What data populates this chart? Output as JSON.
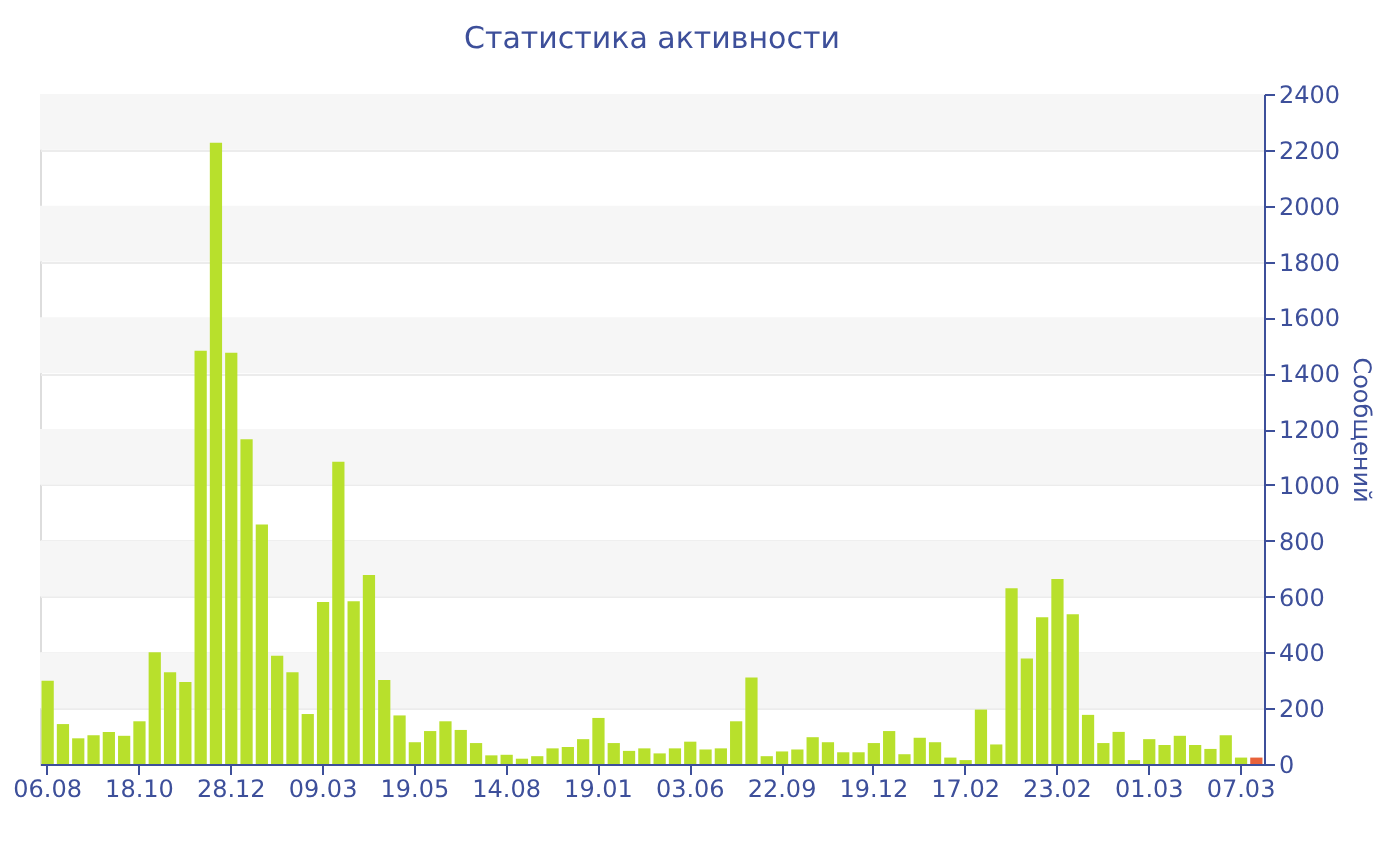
{
  "chart_data": {
    "type": "bar",
    "title": "Статистика активности",
    "ylabel": "Сообщений",
    "categories": [
      "06.08",
      null,
      null,
      null,
      null,
      null,
      "18.10",
      null,
      null,
      null,
      null,
      null,
      "28.12",
      null,
      null,
      null,
      null,
      null,
      "09.03",
      null,
      null,
      null,
      null,
      null,
      "19.05",
      null,
      null,
      null,
      null,
      null,
      "14.08",
      null,
      null,
      null,
      null,
      null,
      "19.01",
      null,
      null,
      null,
      null,
      null,
      "03.06",
      null,
      null,
      null,
      null,
      null,
      "22.09",
      null,
      null,
      null,
      null,
      null,
      "19.12",
      null,
      null,
      null,
      null,
      null,
      "17.02",
      null,
      null,
      null,
      null,
      null,
      "23.02",
      null,
      null,
      null,
      null,
      null,
      "01.03",
      null,
      null,
      null,
      null,
      null,
      "07.03",
      null
    ],
    "values": [
      298,
      143,
      92,
      103,
      115,
      101,
      153,
      400,
      329,
      294,
      1480,
      2225,
      1473,
      1163,
      858,
      388,
      329,
      179,
      580,
      1083,
      583,
      677,
      301,
      174,
      78,
      118,
      153,
      122,
      75,
      31,
      33,
      19,
      28,
      56,
      61,
      89,
      165,
      75,
      47,
      56,
      38,
      56,
      80,
      52,
      56,
      153,
      310,
      28,
      45,
      52,
      96,
      78,
      42,
      42,
      75,
      118,
      35,
      94,
      78,
      23,
      14,
      195,
      70,
      630,
      378,
      526,
      663,
      536,
      176,
      75,
      115,
      14,
      89,
      68,
      101,
      68,
      54,
      103,
      23,
      23
    ],
    "colors": [
      "#b8e02c",
      "#b8e02c",
      "#b8e02c",
      "#b8e02c",
      "#b8e02c",
      "#b8e02c",
      "#b8e02c",
      "#b8e02c",
      "#b8e02c",
      "#b8e02c",
      "#b8e02c",
      "#b8e02c",
      "#b8e02c",
      "#b8e02c",
      "#b8e02c",
      "#b8e02c",
      "#b8e02c",
      "#b8e02c",
      "#b8e02c",
      "#b8e02c",
      "#b8e02c",
      "#b8e02c",
      "#b8e02c",
      "#b8e02c",
      "#b8e02c",
      "#b8e02c",
      "#b8e02c",
      "#b8e02c",
      "#b8e02c",
      "#b8e02c",
      "#b8e02c",
      "#b8e02c",
      "#b8e02c",
      "#b8e02c",
      "#b8e02c",
      "#b8e02c",
      "#b8e02c",
      "#b8e02c",
      "#b8e02c",
      "#b8e02c",
      "#b8e02c",
      "#b8e02c",
      "#b8e02c",
      "#b8e02c",
      "#b8e02c",
      "#b8e02c",
      "#b8e02c",
      "#b8e02c",
      "#b8e02c",
      "#b8e02c",
      "#b8e02c",
      "#b8e02c",
      "#b8e02c",
      "#b8e02c",
      "#b8e02c",
      "#b8e02c",
      "#b8e02c",
      "#b8e02c",
      "#b8e02c",
      "#b8e02c",
      "#b8e02c",
      "#b8e02c",
      "#b8e02c",
      "#b8e02c",
      "#b8e02c",
      "#b8e02c",
      "#b8e02c",
      "#b8e02c",
      "#b8e02c",
      "#b8e02c",
      "#b8e02c",
      "#b8e02c",
      "#b8e02c",
      "#b8e02c",
      "#b8e02c",
      "#b8e02c",
      "#b8e02c",
      "#b8e02c",
      "#b8e02c",
      "#e8623a"
    ],
    "ylim": [
      0,
      2400
    ],
    "yticks": [
      0,
      200,
      400,
      600,
      800,
      1000,
      1200,
      1400,
      1600,
      1800,
      2000,
      2200,
      2400
    ],
    "grid": "y"
  }
}
